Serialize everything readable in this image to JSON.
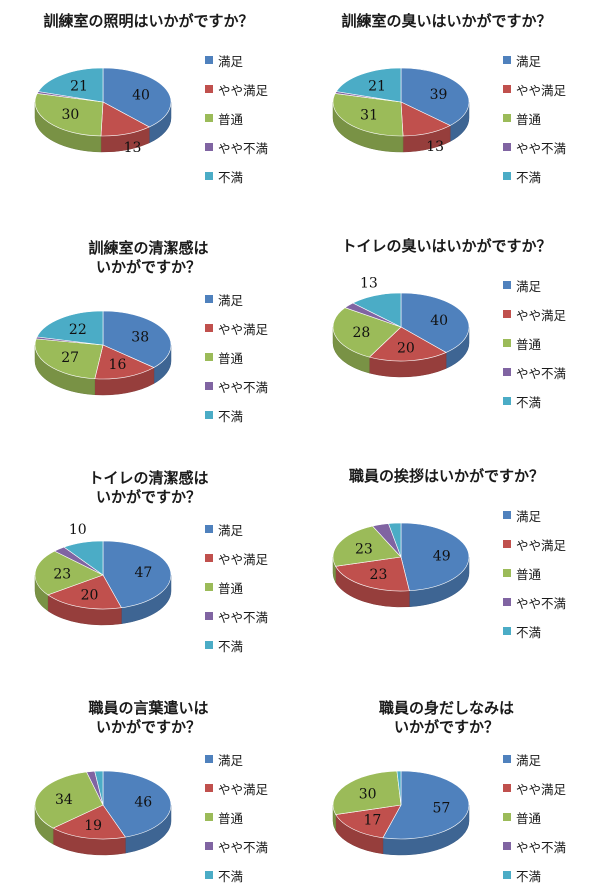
{
  "categories": [
    "満足",
    "やや満足",
    "普通",
    "やや不満",
    "不満"
  ],
  "colors": {
    "満足": "#4F81BD",
    "やや満足": "#C0504D",
    "普通": "#9BBB59",
    "やや不満": "#8064A2",
    "不満": "#4BACC6"
  },
  "chart_data": [
    {
      "type": "pie",
      "title": "訓練室の照明はいかがですか？",
      "categories": [
        "満足",
        "やや満足",
        "普通",
        "やや不満",
        "不満"
      ],
      "values": [
        40,
        13,
        30,
        1,
        21
      ],
      "labels": [
        "40",
        "13",
        "30",
        "",
        "21"
      ],
      "legend": "right"
    },
    {
      "type": "pie",
      "title": "訓練室の臭いはいかがですか？",
      "categories": [
        "満足",
        "やや満足",
        "普通",
        "やや不満",
        "不満"
      ],
      "values": [
        39,
        13,
        31,
        1,
        21
      ],
      "labels": [
        "39",
        "13",
        "31",
        "",
        "21"
      ],
      "legend": "right"
    },
    {
      "type": "pie",
      "title": "訓練室の清潔感は\nいかがですか？",
      "categories": [
        "満足",
        "やや満足",
        "普通",
        "やや不満",
        "不満"
      ],
      "values": [
        38,
        16,
        27,
        1,
        22
      ],
      "labels": [
        "38",
        "16",
        "27",
        "",
        "22"
      ],
      "legend": "right"
    },
    {
      "type": "pie",
      "title": "トイレの臭いはいかがですか？",
      "categories": [
        "満足",
        "やや満足",
        "普通",
        "やや不満",
        "不満"
      ],
      "values": [
        40,
        20,
        28,
        3,
        13
      ],
      "labels": [
        "40",
        "20",
        "28",
        "",
        "13"
      ],
      "legend": "right"
    },
    {
      "type": "pie",
      "title": "トイレの清潔感は\nいかがですか？",
      "categories": [
        "満足",
        "やや満足",
        "普通",
        "やや不満",
        "不満"
      ],
      "values": [
        47,
        20,
        23,
        3,
        10
      ],
      "labels": [
        "47",
        "20",
        "23",
        "",
        "10"
      ],
      "legend": "right"
    },
    {
      "type": "pie",
      "title": "職員の挨拶はいかがですか？",
      "categories": [
        "満足",
        "やや満足",
        "普通",
        "やや不満",
        "不満"
      ],
      "values": [
        49,
        23,
        23,
        4,
        3
      ],
      "labels": [
        "49",
        "23",
        "23",
        "",
        ""
      ],
      "legend": "right"
    },
    {
      "type": "pie",
      "title": "職員の言葉遣いは\nいかがですか？",
      "categories": [
        "満足",
        "やや満足",
        "普通",
        "やや不満",
        "不満"
      ],
      "values": [
        46,
        19,
        34,
        2,
        2
      ],
      "labels": [
        "46",
        "19",
        "34",
        "",
        ""
      ],
      "legend": "right"
    },
    {
      "type": "pie",
      "title": "職員の身だしなみは\nいかがですか？",
      "categories": [
        "満足",
        "やや満足",
        "普通",
        "やや不満",
        "不満"
      ],
      "values": [
        57,
        17,
        30,
        0,
        1
      ],
      "labels": [
        "57",
        "17",
        "30",
        "",
        ""
      ],
      "legend": "right"
    }
  ]
}
